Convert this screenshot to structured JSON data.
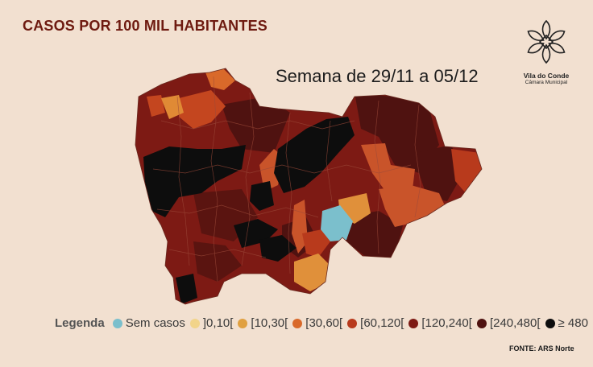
{
  "header": {
    "title": "CASOS POR 100 MIL HABITANTES",
    "subtitle": "Semana de 29/11 a 05/12"
  },
  "logo": {
    "name": "Vila do Conde",
    "subname": "Câmara Municipal"
  },
  "legend": {
    "title": "Legenda",
    "items": [
      {
        "label": "Sem casos",
        "color": "#7bbfcc"
      },
      {
        "label": "]0,10[",
        "color": "#f2d48a"
      },
      {
        "label": "[10,30[",
        "color": "#e0a040"
      },
      {
        "label": "[30,60[",
        "color": "#d9692a"
      },
      {
        "label": "[60,120[",
        "color": "#b83a1c"
      },
      {
        "label": "[120,240[",
        "color": "#7d1a14"
      },
      {
        "label": "[240,480[",
        "color": "#4f1210"
      },
      {
        "label": "≥ 480",
        "color": "#0d0d0d"
      }
    ]
  },
  "source": "FONTE: ARS Norte"
}
